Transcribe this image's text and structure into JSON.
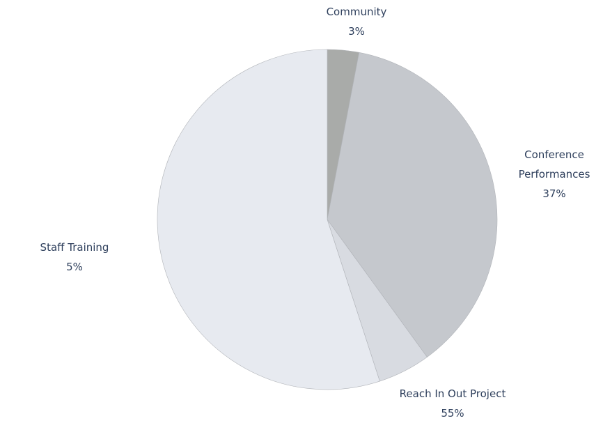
{
  "chart_data": {
    "type": "pie",
    "categories": [
      "Community",
      "Conference Performances",
      "Staff Training",
      "Reach In Out Project"
    ],
    "values": [
      3,
      37,
      5,
      55
    ],
    "value_labels": [
      "3%",
      "37%",
      "5%",
      "55%"
    ],
    "colors": [
      "#a9aba9",
      "#c5c8cd",
      "#d8dbe1",
      "#e7eaf0"
    ]
  }
}
